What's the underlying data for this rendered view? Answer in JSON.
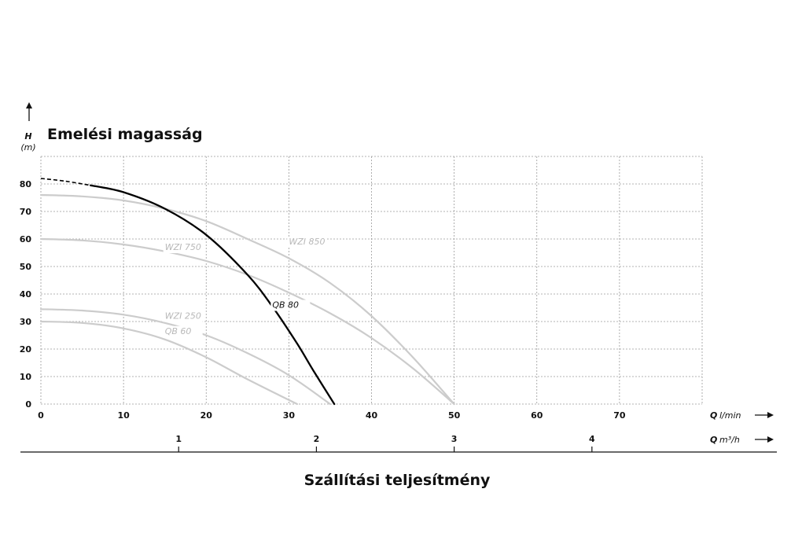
{
  "chart_data": {
    "type": "line",
    "title": "Emelési magasság",
    "xlabel": "Szállítási teljesítmény",
    "y_axis": {
      "symbol": "H",
      "unit": "(m)",
      "ticks": [
        0,
        10,
        20,
        30,
        40,
        50,
        60,
        70,
        80
      ],
      "ylim": [
        0,
        90
      ]
    },
    "x_axis": {
      "symbol": "Q",
      "unit": "l/min",
      "ticks": [
        0,
        10,
        20,
        30,
        40,
        50,
        60,
        70
      ],
      "xlim": [
        0,
        80
      ]
    },
    "x_axis_secondary": {
      "symbol": "Q",
      "unit": "m³/h",
      "ticks": [
        1,
        2,
        3,
        4
      ]
    },
    "grid": true,
    "series": [
      {
        "name": "QB 80",
        "color": "#000000",
        "dashed": {
          "x": [
            0,
            3,
            6
          ],
          "y": [
            82,
            81,
            79.5
          ]
        },
        "x": [
          6,
          10,
          15,
          20,
          25,
          28,
          31,
          33,
          35.5
        ],
        "y": [
          79.5,
          77,
          71,
          61.5,
          47,
          35.5,
          22,
          12,
          0
        ]
      },
      {
        "name": "WZI 850",
        "color": "#cccccc",
        "x": [
          0,
          5,
          10,
          15,
          20,
          25,
          30,
          35,
          40,
          45,
          50
        ],
        "y": [
          76,
          75.5,
          74,
          71,
          66.5,
          60,
          53,
          44,
          32,
          17,
          0
        ]
      },
      {
        "name": "WZI 750",
        "color": "#cccccc",
        "x": [
          0,
          5,
          10,
          15,
          20,
          25,
          30,
          35,
          40,
          45,
          50
        ],
        "y": [
          60,
          59.5,
          58,
          55.5,
          52,
          47,
          40.5,
          33,
          24,
          13,
          0
        ]
      },
      {
        "name": "WZI 250",
        "color": "#cccccc",
        "x": [
          0,
          5,
          10,
          15,
          20,
          25,
          30,
          35
        ],
        "y": [
          34.5,
          34,
          32.5,
          29.5,
          25,
          18.5,
          10.5,
          0
        ]
      },
      {
        "name": "QB 60",
        "color": "#cccccc",
        "x": [
          0,
          5,
          10,
          15,
          20,
          25,
          31
        ],
        "y": [
          30,
          29.5,
          27.5,
          23.5,
          17,
          9,
          0
        ]
      }
    ]
  }
}
